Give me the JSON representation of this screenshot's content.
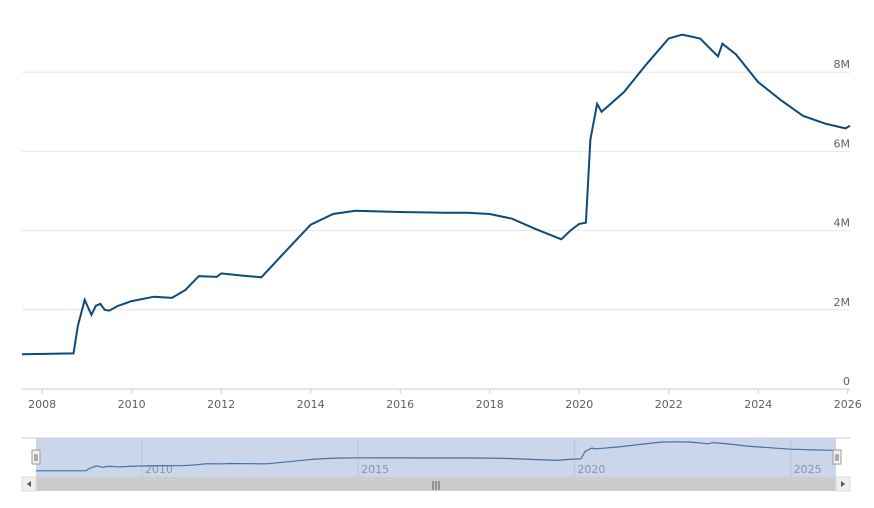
{
  "chart_data": {
    "type": "line",
    "title": "",
    "xlabel": "",
    "ylabel": "",
    "xlim": [
      2007.55,
      2026.05
    ],
    "ylim": [
      0,
      9.5
    ],
    "grid": true,
    "line_color": "#0d4a7c",
    "y_ticks": [
      {
        "v": 0,
        "label": "0"
      },
      {
        "v": 2,
        "label": "2M"
      },
      {
        "v": 4,
        "label": "4M"
      },
      {
        "v": 6,
        "label": "6M"
      },
      {
        "v": 8,
        "label": "8M"
      }
    ],
    "x_ticks": [
      "2008",
      "2010",
      "2012",
      "2014",
      "2016",
      "2018",
      "2020",
      "2022",
      "2024",
      "2026"
    ],
    "series": [
      {
        "x": [
          2007.55,
          2008.7,
          2008.8,
          2008.95,
          2009.1,
          2009.2,
          2009.3,
          2009.4,
          2009.5,
          2009.7,
          2010.0,
          2010.5,
          2010.9,
          2011.2,
          2011.5,
          2011.9,
          2012.0,
          2012.5,
          2012.9,
          2013.5,
          2014.0,
          2014.5,
          2015.0,
          2016.0,
          2017.0,
          2017.5,
          2018.0,
          2018.5,
          2019.0,
          2019.6,
          2019.8,
          2020.0,
          2020.15,
          2020.25,
          2020.4,
          2020.5,
          2021.0,
          2021.5,
          2022.0,
          2022.3,
          2022.7,
          2023.1,
          2023.2,
          2023.5,
          2024.0,
          2024.5,
          2025.0,
          2025.5,
          2025.95,
          2026.05
        ],
        "values": [
          0.88,
          0.9,
          1.6,
          2.25,
          1.87,
          2.1,
          2.15,
          2.0,
          1.98,
          2.1,
          2.22,
          2.33,
          2.3,
          2.5,
          2.85,
          2.83,
          2.92,
          2.86,
          2.82,
          3.55,
          4.15,
          4.42,
          4.5,
          4.47,
          4.45,
          4.45,
          4.42,
          4.3,
          4.05,
          3.78,
          4.0,
          4.17,
          4.2,
          6.3,
          7.2,
          7.0,
          7.5,
          8.2,
          8.85,
          8.95,
          8.85,
          8.4,
          8.72,
          8.45,
          7.75,
          7.3,
          6.9,
          6.7,
          6.58,
          6.65
        ]
      }
    ]
  },
  "navigator": {
    "labels": [
      "2010",
      "2015",
      "2020",
      "2025"
    ],
    "fill": "#ccd6eb",
    "line_color": "#4572a7"
  },
  "scrollbar": {
    "grip": "|||"
  }
}
